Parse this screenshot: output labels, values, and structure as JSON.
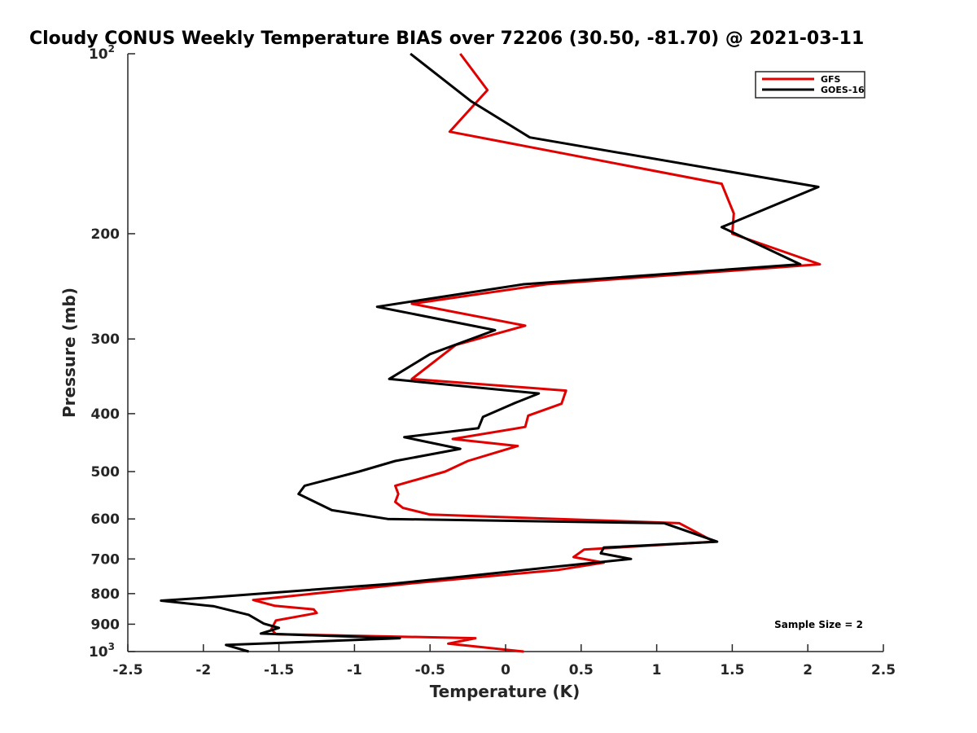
{
  "chart_data": {
    "type": "line",
    "title": "Cloudy CONUS Weekly Temperature BIAS over 72206 (30.50, -81.70) @ 2021-03-11",
    "xlabel": "Temperature (K)",
    "ylabel": "Pressure (mb)",
    "xlim": [
      -2.5,
      2.5
    ],
    "ylim": [
      100,
      1000
    ],
    "yscale": "log",
    "y_reversed": true,
    "x_ticks": [
      -2.5,
      -2,
      -1.5,
      -1,
      -0.5,
      0,
      0.5,
      1,
      1.5,
      2,
      2.5
    ],
    "x_tick_labels": [
      "-2.5",
      "-2",
      "-1.5",
      "-1",
      "-0.5",
      "0",
      "0.5",
      "1",
      "1.5",
      "2",
      "2.5"
    ],
    "y_ticks": [
      100,
      200,
      300,
      400,
      500,
      600,
      700,
      800,
      900,
      1000
    ],
    "y_tick_labels": [
      {
        "base": "10",
        "exp": "2"
      },
      {
        "base": "200",
        "exp": ""
      },
      {
        "base": "300",
        "exp": ""
      },
      {
        "base": "400",
        "exp": ""
      },
      {
        "base": "500",
        "exp": ""
      },
      {
        "base": "600",
        "exp": ""
      },
      {
        "base": "700",
        "exp": ""
      },
      {
        "base": "800",
        "exp": ""
      },
      {
        "base": "900",
        "exp": ""
      },
      {
        "base": "10",
        "exp": "3"
      }
    ],
    "grid": false,
    "legend_position": "top-right",
    "annotation": "Sample Size = 2",
    "series": [
      {
        "name": "GFS",
        "color": "#e00000",
        "points": [
          [
            -0.3,
            100
          ],
          [
            -0.12,
            115
          ],
          [
            -0.37,
            135
          ],
          [
            1.43,
            165
          ],
          [
            1.51,
            185
          ],
          [
            1.5,
            200
          ],
          [
            2.08,
            225
          ],
          [
            0.27,
            243
          ],
          [
            -0.62,
            262
          ],
          [
            0.13,
            285
          ],
          [
            -0.33,
            307
          ],
          [
            -0.62,
            350
          ],
          [
            0.4,
            366
          ],
          [
            0.37,
            385
          ],
          [
            0.15,
            403
          ],
          [
            0.13,
            421
          ],
          [
            -0.35,
            441
          ],
          [
            0.08,
            453
          ],
          [
            -0.25,
            480
          ],
          [
            -0.4,
            500
          ],
          [
            -0.73,
            528
          ],
          [
            -0.71,
            545
          ],
          [
            -0.73,
            562
          ],
          [
            -0.68,
            575
          ],
          [
            -0.5,
            590
          ],
          [
            1.15,
            610
          ],
          [
            1.38,
            655
          ],
          [
            0.52,
            675
          ],
          [
            0.45,
            695
          ],
          [
            0.65,
            710
          ],
          [
            0.35,
            730
          ],
          [
            -0.65,
            770
          ],
          [
            -1.67,
            820
          ],
          [
            -1.53,
            838
          ],
          [
            -1.27,
            850
          ],
          [
            -1.25,
            862
          ],
          [
            -1.52,
            887
          ],
          [
            -1.55,
            918
          ],
          [
            -1.52,
            935
          ],
          [
            -0.2,
            950
          ],
          [
            -0.38,
            970
          ],
          [
            0.12,
            1000
          ]
        ]
      },
      {
        "name": "GOES-16",
        "color": "#000000",
        "points": [
          [
            -0.63,
            100
          ],
          [
            -0.23,
            120
          ],
          [
            0.16,
            138
          ],
          [
            2.07,
            167
          ],
          [
            1.43,
            195
          ],
          [
            1.95,
            225
          ],
          [
            0.12,
            243
          ],
          [
            -0.85,
            265
          ],
          [
            -0.07,
            290
          ],
          [
            -0.5,
            318
          ],
          [
            -0.77,
            350
          ],
          [
            0.22,
            370
          ],
          [
            0.05,
            385
          ],
          [
            -0.15,
            405
          ],
          [
            -0.18,
            423
          ],
          [
            -0.67,
            438
          ],
          [
            -0.3,
            458
          ],
          [
            -0.73,
            480
          ],
          [
            -0.97,
            500
          ],
          [
            -1.33,
            528
          ],
          [
            -1.37,
            545
          ],
          [
            -1.15,
            580
          ],
          [
            -0.78,
            600
          ],
          [
            1.05,
            610
          ],
          [
            1.4,
            655
          ],
          [
            0.65,
            670
          ],
          [
            0.63,
            685
          ],
          [
            0.83,
            700
          ],
          [
            0.36,
            720
          ],
          [
            -0.3,
            750
          ],
          [
            -0.75,
            770
          ],
          [
            -1.9,
            810
          ],
          [
            -2.28,
            822
          ],
          [
            -1.93,
            840
          ],
          [
            -1.7,
            868
          ],
          [
            -1.6,
            898
          ],
          [
            -1.5,
            913
          ],
          [
            -1.62,
            933
          ],
          [
            -0.7,
            950
          ],
          [
            -1.85,
            975
          ],
          [
            -1.7,
            1000
          ]
        ]
      }
    ]
  }
}
